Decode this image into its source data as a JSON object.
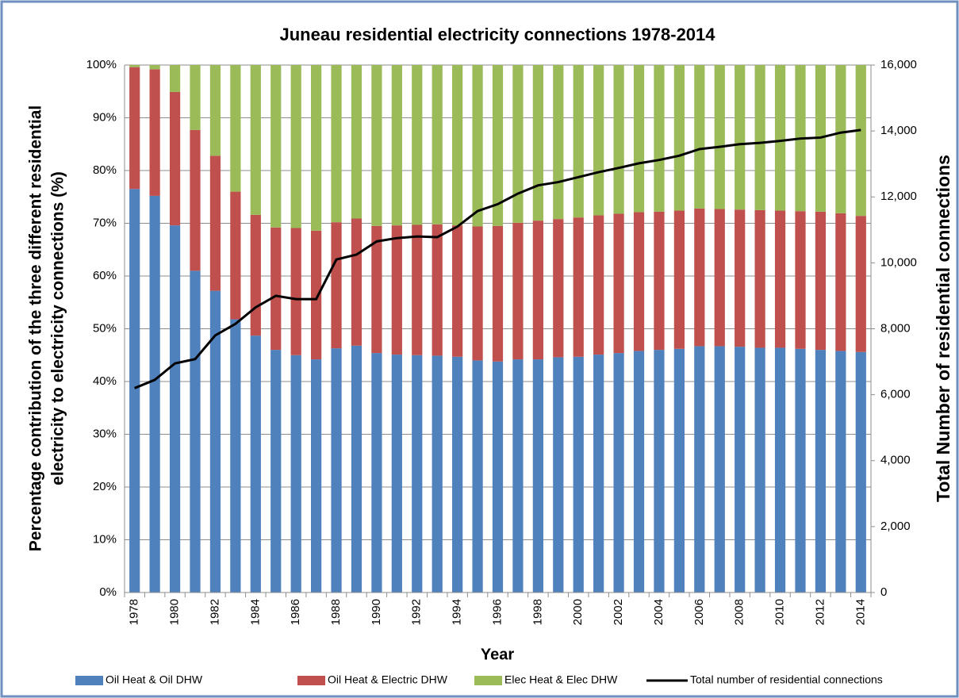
{
  "chart_data": {
    "type": "stacked_bar_line",
    "title": "Juneau residential electricity connections 1978-2014",
    "x_label": "Year",
    "y_label": [
      "Percentage contribution of the three different residential",
      "electricity to electricity connections (%)"
    ],
    "y2_label": "Total  Number of residential connections",
    "categories": [
      1978,
      null,
      1980,
      null,
      1982,
      null,
      1984,
      null,
      1986,
      null,
      1988,
      null,
      1990,
      null,
      1992,
      null,
      1994,
      null,
      1996,
      null,
      1998,
      null,
      2000,
      null,
      2002,
      null,
      2004,
      null,
      2006,
      null,
      2008,
      null,
      2010,
      null,
      2012,
      null,
      2014
    ],
    "series": [
      {
        "name": "Oil Heat & Oil DHW",
        "color": "#4f81bd",
        "values": [
          76.5,
          75.2,
          69.6,
          61,
          57.2,
          51.8,
          48.7,
          46,
          45,
          44.2,
          46.3,
          46.8,
          45.4,
          45.1,
          45,
          44.9,
          44.7,
          44,
          43.8,
          44.2,
          44.2,
          44.6,
          44.7,
          45.1,
          45.4,
          45.8,
          46,
          46.2,
          46.7,
          46.7,
          46.6,
          46.4,
          46.4,
          46.2,
          46,
          45.8,
          45.6
        ]
      },
      {
        "name": "Oil Heat & Electric DHW",
        "color": "#c0504d",
        "values": [
          23.1,
          24.0,
          25.3,
          26.7,
          25.6,
          24.2,
          22.9,
          23.2,
          24.1,
          24.4,
          23.9,
          24.1,
          24.1,
          24.5,
          24.7,
          24.9,
          24.9,
          25.4,
          25.7,
          25.9,
          26.3,
          26.2,
          26.4,
          26.4,
          26.4,
          26.3,
          26.2,
          26.2,
          26.1,
          26.0,
          26.0,
          26.1,
          26.0,
          26.1,
          26.2,
          26.1,
          25.8
        ]
      },
      {
        "name": "Elec Heat & Elec DHW",
        "color": "#9bbb59",
        "values": [
          0.4,
          0.8,
          5.1,
          12.3,
          17.2,
          24,
          28.4,
          30.8,
          30.9,
          31.4,
          29.8,
          29.1,
          30.5,
          30.4,
          30.3,
          30.2,
          30.4,
          30.6,
          30.5,
          29.9,
          29.5,
          29.2,
          28.9,
          28.5,
          28.2,
          27.9,
          27.8,
          27.6,
          27.2,
          27.3,
          27.4,
          27.5,
          27.6,
          27.7,
          27.8,
          28.1,
          28.6
        ]
      },
      {
        "name": "Total number of residential connections",
        "color": "#000000",
        "axis": "y2",
        "values": [
          6200,
          6450,
          6950,
          7080,
          7800,
          8150,
          8650,
          9000,
          8900,
          8900,
          10100,
          10250,
          10650,
          10750,
          10800,
          10780,
          11100,
          11570,
          11780,
          12100,
          12350,
          12450,
          12600,
          12750,
          12880,
          13020,
          13120,
          13250,
          13450,
          13520,
          13600,
          13640,
          13700,
          13770,
          13800,
          13950,
          14030
        ]
      }
    ],
    "ylim": [
      0,
      100
    ],
    "yticks": [
      {
        "value": 0,
        "label": "0%"
      },
      {
        "value": 10,
        "label": "10%"
      },
      {
        "value": 20,
        "label": "20%"
      },
      {
        "value": 30,
        "label": "30%"
      },
      {
        "value": 40,
        "label": "40%"
      },
      {
        "value": 50,
        "label": "50%"
      },
      {
        "value": 60,
        "label": "60%"
      },
      {
        "value": 70,
        "label": "70%"
      },
      {
        "value": 80,
        "label": "80%"
      },
      {
        "value": 90,
        "label": "90%"
      },
      {
        "value": 100,
        "label": "100%"
      }
    ],
    "y2lim": [
      0,
      16000
    ],
    "y2ticks": [
      0,
      {
        "value": 2000,
        "label": "2,000"
      },
      {
        "value": 4000,
        "label": "4,000"
      },
      {
        "value": 6000,
        "label": "6,000"
      },
      {
        "value": 8000,
        "label": "8,000"
      },
      {
        "value": 10000,
        "label": "10,000"
      },
      {
        "value": 12000,
        "label": "12,000"
      },
      {
        "value": 14000,
        "label": "14,000"
      },
      {
        "value": 16000,
        "label": "16,000"
      }
    ],
    "grid": true,
    "legend": "bottom"
  }
}
